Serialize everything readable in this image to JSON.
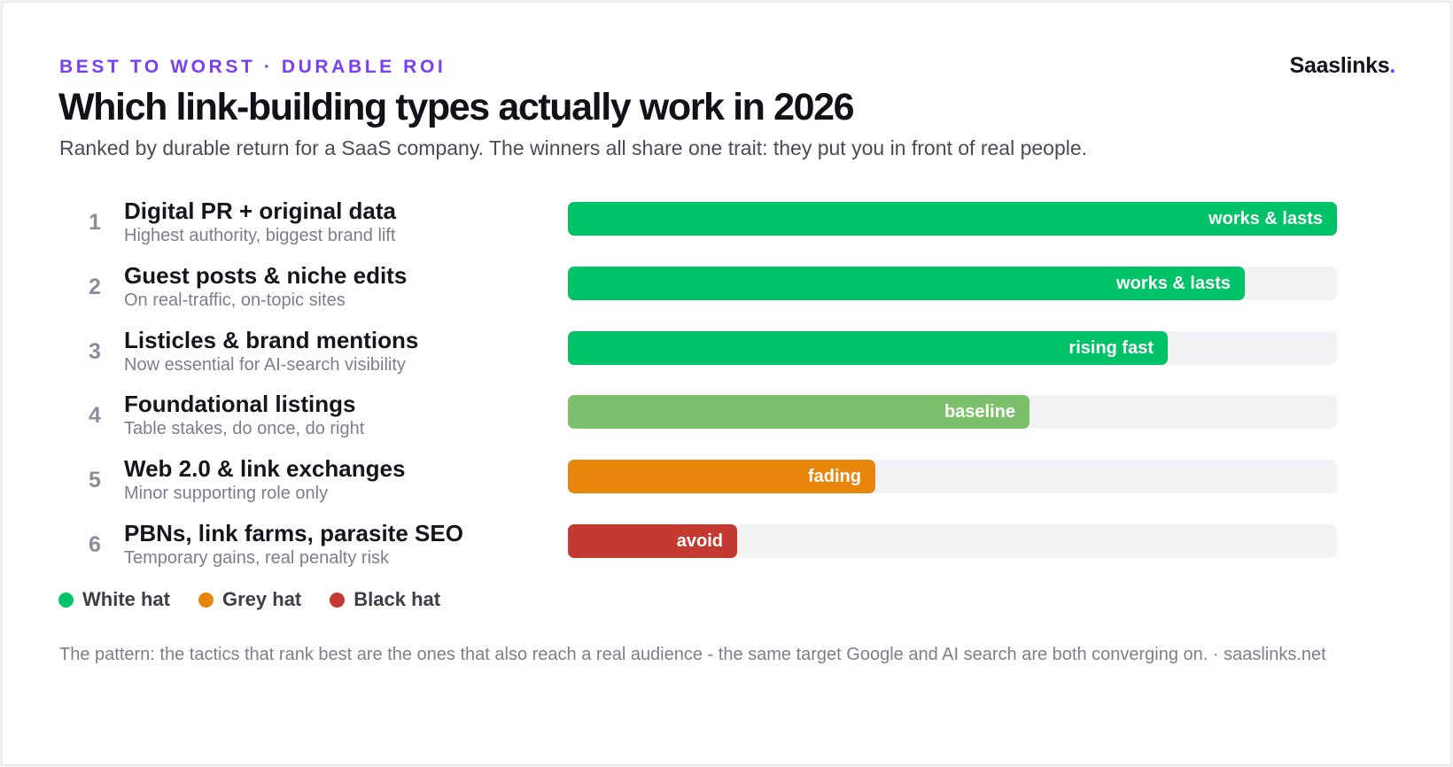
{
  "header": {
    "kicker": "BEST TO WORST · DURABLE ROI",
    "brand": "Saaslinks",
    "brand_dot": ".",
    "title": "Which link-building types actually work in 2026",
    "subtitle": "Ranked by durable return for a SaaS company. The winners all share one trait: they put you in front of real people."
  },
  "colors": {
    "accent": "#7b3ff2",
    "white_hat": "#00c266",
    "baseline": "#7dc06b",
    "grey_hat": "#e8860c",
    "black_hat": "#c53a30",
    "track": "#f2f2f5"
  },
  "chart_data": {
    "type": "bar",
    "orientation": "horizontal",
    "value_scale": "relative score (fraction of full track)",
    "xlim": [
      0,
      1
    ],
    "categories": [
      "Digital PR + original data",
      "Guest posts & niche edits",
      "Listicles & brand mentions",
      "Foundational listings",
      "Web 2.0 & link exchanges",
      "PBNs, link farms, parasite SEO"
    ],
    "ranks": [
      "1",
      "2",
      "3",
      "4",
      "5",
      "6"
    ],
    "notes": [
      "Highest authority, biggest brand lift",
      "On real-traffic, on-topic sites",
      "Now essential for AI-search visibility",
      "Table stakes, do once, do right",
      "Minor supporting role only",
      "Temporary gains, real penalty risk"
    ],
    "values": [
      1.0,
      0.88,
      0.78,
      0.6,
      0.4,
      0.22
    ],
    "bar_labels": [
      "works & lasts",
      "works & lasts",
      "rising fast",
      "baseline",
      "fading",
      "avoid"
    ],
    "bar_colors": [
      "#00c266",
      "#00c266",
      "#00c266",
      "#7dc06b",
      "#e8860c",
      "#c53a30"
    ],
    "legend": [
      {
        "label": "White hat",
        "color": "#00c266"
      },
      {
        "label": "Grey hat",
        "color": "#e8860c"
      },
      {
        "label": "Black hat",
        "color": "#c53a30"
      }
    ],
    "legend_position": "bottom-left",
    "grid": false
  },
  "footer": {
    "text": "The pattern: the tactics that rank best are the ones that also reach a real audience - the same target Google and AI search are both converging on. · saaslinks.net"
  }
}
